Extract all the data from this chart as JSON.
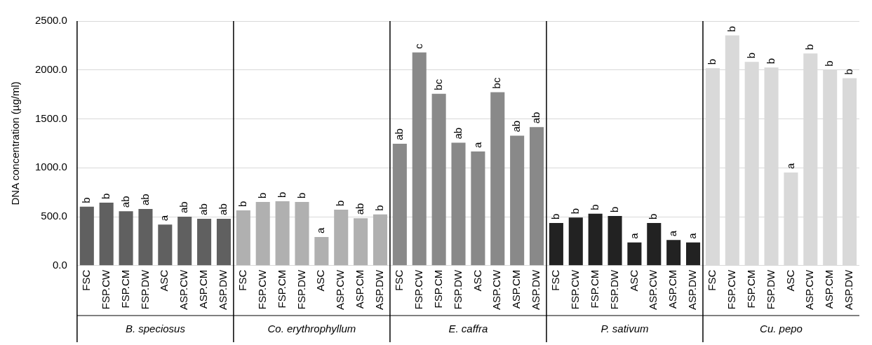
{
  "chart_data": {
    "type": "bar",
    "ylabel": "DNA concentration (µg/ml)",
    "categories": [
      "FSC",
      "FSP.CW",
      "FSP.CM",
      "FSP.DW",
      "ASC",
      "ASP.CW",
      "ASP.CM",
      "ASP.DW",
      "FSC",
      "FSP.CW",
      "FSP.CM",
      "FSP.DW",
      "ASC",
      "ASP.CW",
      "ASP.CM",
      "ASP.DW",
      "FSC",
      "FSP.CW",
      "FSP.CM",
      "FSP.DW",
      "ASC",
      "ASP.CW",
      "ASP.CM",
      "ASP.DW",
      "FSC",
      "FSP.CW",
      "FSP.CM",
      "FSP.DW",
      "ASC",
      "ASP.CW",
      "ASP.CM",
      "ASP.DW",
      "FSC",
      "FSP.CW",
      "FSP.CM",
      "FSP.DW",
      "ASC",
      "ASP.CW",
      "ASP.CM",
      "ASP.DW"
    ],
    "series": [
      {
        "values": [
          602,
          643,
          556,
          579,
          420,
          500,
          479,
          479,
          564,
          651,
          658,
          651,
          292,
          571,
          484,
          523,
          1246,
          2179,
          1757,
          1256,
          1167,
          1773,
          1328,
          1415,
          436,
          492,
          530,
          508,
          236,
          436,
          262,
          236,
          2018,
          2353,
          2082,
          2026,
          952,
          2169,
          2000,
          1916
        ],
        "colors": [
          "#606060",
          "#606060",
          "#606060",
          "#606060",
          "#606060",
          "#606060",
          "#606060",
          "#606060",
          "#b0b0b0",
          "#b0b0b0",
          "#b0b0b0",
          "#b0b0b0",
          "#b0b0b0",
          "#b0b0b0",
          "#b0b0b0",
          "#b0b0b0",
          "#898989",
          "#898989",
          "#898989",
          "#898989",
          "#898989",
          "#898989",
          "#898989",
          "#898989",
          "#222222",
          "#222222",
          "#222222",
          "#222222",
          "#222222",
          "#222222",
          "#222222",
          "#222222",
          "#d9d9d9",
          "#d9d9d9",
          "#d9d9d9",
          "#d9d9d9",
          "#d9d9d9",
          "#d9d9d9",
          "#d9d9d9",
          "#d9d9d9"
        ],
        "value_labels": [
          "b",
          "b",
          "ab",
          "ab",
          "a",
          "ab",
          "ab",
          "ab",
          "b",
          "b",
          "b",
          "b",
          "a",
          "b",
          "ab",
          "b",
          "ab",
          "c",
          "bc",
          "ab",
          "a",
          "bc",
          "ab",
          "ab",
          "b",
          "b",
          "b",
          "b",
          "a",
          "b",
          "a",
          "a",
          "b",
          "b",
          "b",
          "b",
          "a",
          "b",
          "b",
          "b"
        ]
      }
    ],
    "annotations": [
      "B. speciosus",
      "Co. erythrophyllum",
      "E. caffra",
      "P. sativum",
      "Cu. pepo"
    ],
    "ylim": [
      0,
      2500
    ],
    "yticks": [
      {
        "value": 0,
        "label": "0.0"
      },
      {
        "value": 500,
        "label": "500.0"
      },
      {
        "value": 1000,
        "label": "1000.0"
      },
      {
        "value": 1500,
        "label": "1500.0"
      },
      {
        "value": 2000,
        "label": "2000.0"
      },
      {
        "value": 2500,
        "label": "2500.0"
      }
    ],
    "grid": "y",
    "legend": false
  }
}
